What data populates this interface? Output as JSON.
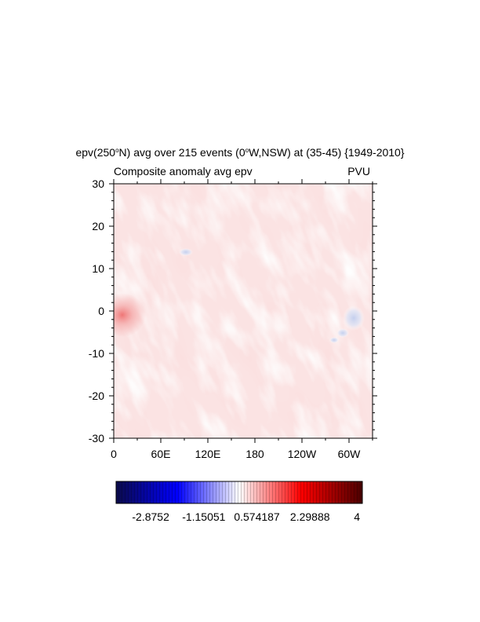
{
  "chart_data": {
    "type": "heatmap",
    "title_parts": [
      "epv(250",
      "o",
      "N) avg over 215 events (0",
      "o",
      "W,NSW) at (35-45) {1949-2010}"
    ],
    "left_subtitle": "Composite anomaly avg epv",
    "right_subtitle": "PVU",
    "x_ticks": [
      "0",
      "60E",
      "120E",
      "180",
      "120W",
      "60W"
    ],
    "y_ticks": [
      "30",
      "20",
      "10",
      "0",
      "-10",
      "-20",
      "-30"
    ],
    "ylim": [
      -30,
      30
    ],
    "colorbar": {
      "min": -4,
      "max": 4,
      "labels": [
        "-2.8752",
        "-1.15051",
        "0.574187",
        "2.29888",
        "4"
      ],
      "colors": {
        "negative_end": "#0a0a4a",
        "blue": "#0000ff",
        "mid": "#ffffff",
        "red": "#ff0000",
        "positive_end": "#4a0000"
      }
    },
    "field": {
      "background": "#fbe3e3",
      "features": [
        {
          "description": "positive maximum",
          "lon": 8,
          "lat": -1,
          "value": 1.6
        },
        {
          "description": "negative minimum",
          "lon": 311,
          "lat": -1,
          "value": -0.5
        },
        {
          "description": "negative patch",
          "lon": 92,
          "lat": 14,
          "value": -0.2
        }
      ]
    }
  }
}
